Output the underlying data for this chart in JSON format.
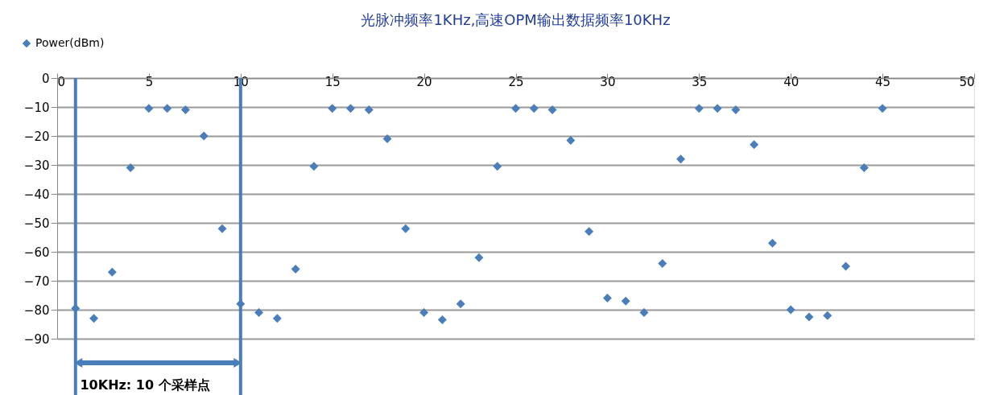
{
  "chart_data": {
    "type": "scatter",
    "title": "光脉冲频率1KHz,高速OPM输出数据频率10KHz",
    "x": [
      1,
      2,
      3,
      4,
      5,
      6,
      7,
      8,
      9,
      10,
      11,
      12,
      13,
      14,
      15,
      16,
      17,
      18,
      19,
      20,
      21,
      22,
      23,
      24,
      25,
      26,
      27,
      28,
      29,
      30,
      31,
      32,
      33,
      34,
      35,
      36,
      37,
      38,
      39,
      40,
      41,
      42,
      43,
      44,
      45
    ],
    "series": [
      {
        "name": "Power(dBm)",
        "color": "#4a7ebb",
        "values": [
          -79.5,
          -83,
          -67,
          -31,
          -10.5,
          -10.5,
          -11,
          -20,
          -52,
          -78,
          -81,
          -83,
          -66,
          -30.5,
          -10.5,
          -10.5,
          -11,
          -21,
          -52,
          -81,
          -83.5,
          -78,
          -62,
          -30.5,
          -10.5,
          -10.5,
          -11,
          -21.5,
          -53,
          -76,
          -77,
          -81,
          -64,
          -28,
          -10.5,
          -10.5,
          -11,
          -23,
          -57,
          -80,
          -82.5,
          -82,
          -65,
          -31,
          -10.5
        ]
      }
    ],
    "marker": "diamond",
    "xlim": [
      0,
      50
    ],
    "xticks": [
      0,
      5,
      10,
      15,
      20,
      25,
      30,
      35,
      40,
      45,
      50
    ],
    "ylim": [
      -90,
      0
    ],
    "yticks": [
      0,
      -10,
      -20,
      -30,
      -40,
      -50,
      -60,
      -70,
      -80,
      -90
    ],
    "grid": "y",
    "legend": "top left",
    "ref_lines": [
      {
        "axis": "x",
        "value": 1,
        "color": "#4a7ebb"
      },
      {
        "axis": "x",
        "value": 10,
        "color": "#4a7ebb"
      }
    ],
    "annotations": [
      "10KHz: 10 个采样点"
    ]
  }
}
